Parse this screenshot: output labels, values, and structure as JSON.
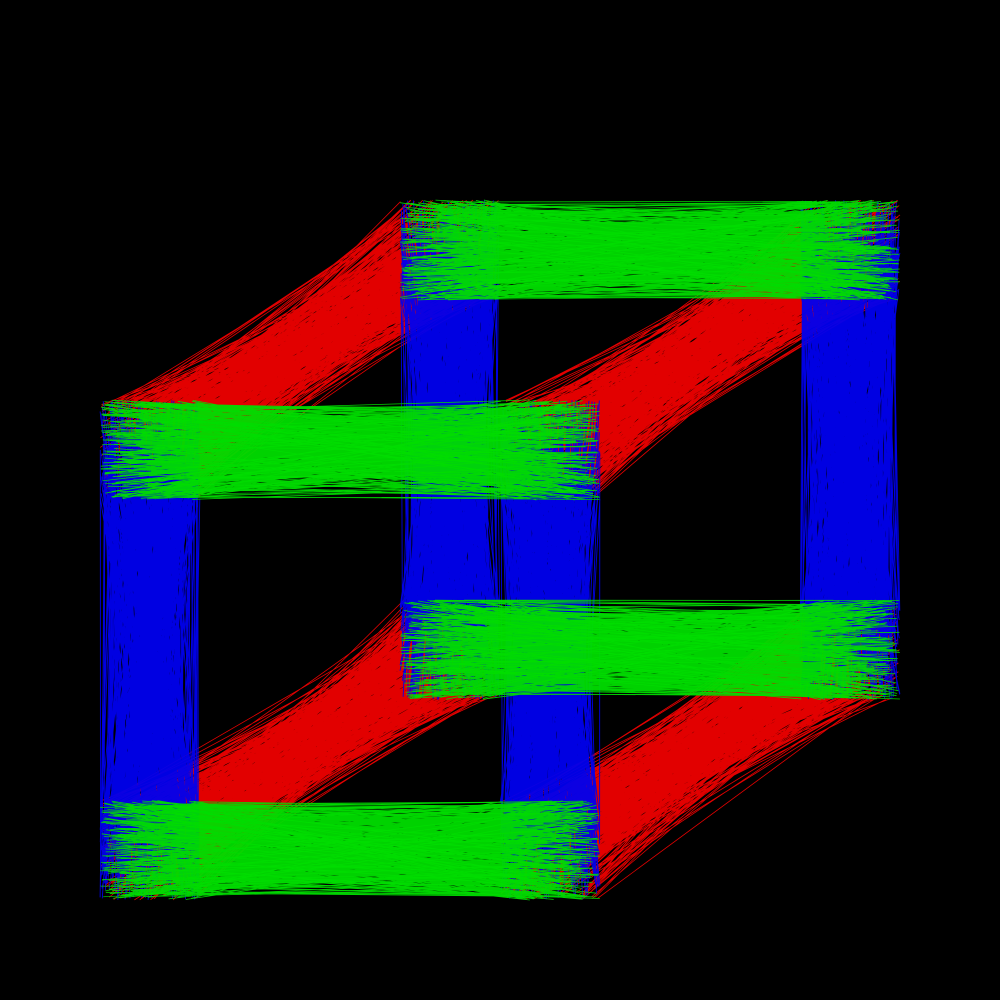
{
  "scene": {
    "background": "#000000",
    "colors": {
      "x_edges": "#00dd00",
      "y_edges": "#0000ee",
      "z_edges": "#ee0000"
    },
    "strands_per_edge": 450,
    "edges": [
      {
        "name": "front-top-edge",
        "axis": "x"
      },
      {
        "name": "front-bottom-edge",
        "axis": "x"
      },
      {
        "name": "back-top-edge",
        "axis": "x"
      },
      {
        "name": "back-bottom-edge",
        "axis": "x"
      },
      {
        "name": "front-left-edge",
        "axis": "y"
      },
      {
        "name": "front-right-edge",
        "axis": "y"
      },
      {
        "name": "back-left-edge",
        "axis": "y"
      },
      {
        "name": "back-right-edge",
        "axis": "y"
      },
      {
        "name": "top-left-depth-edge",
        "axis": "z"
      },
      {
        "name": "top-right-depth-edge",
        "axis": "z"
      },
      {
        "name": "bottom-left-depth-edge",
        "axis": "z"
      },
      {
        "name": "bottom-right-depth-edge",
        "axis": "z"
      }
    ]
  }
}
